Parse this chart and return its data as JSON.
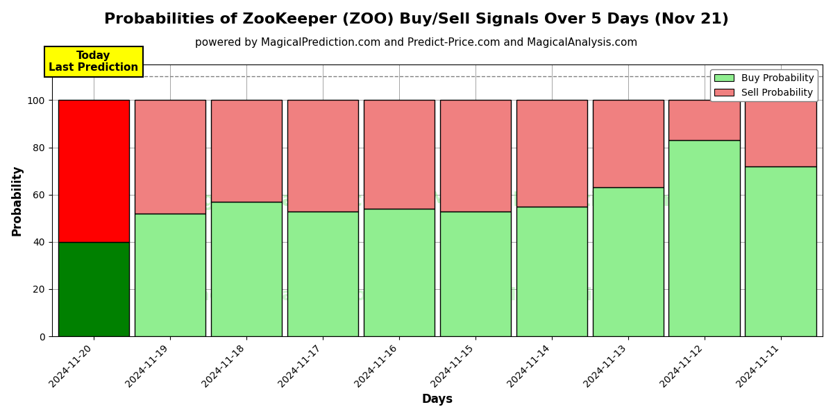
{
  "title": "Probabilities of ZooKeeper (ZOO) Buy/Sell Signals Over 5 Days (Nov 21)",
  "subtitle": "powered by MagicalPrediction.com and Predict-Price.com and MagicalAnalysis.com",
  "xlabel": "Days",
  "ylabel": "Probability",
  "dates": [
    "2024-11-20",
    "2024-11-19",
    "2024-11-18",
    "2024-11-17",
    "2024-11-16",
    "2024-11-15",
    "2024-11-14",
    "2024-11-13",
    "2024-11-12",
    "2024-11-11"
  ],
  "buy_values": [
    40,
    52,
    57,
    53,
    54,
    53,
    55,
    63,
    83,
    72
  ],
  "sell_values": [
    60,
    48,
    43,
    47,
    46,
    47,
    45,
    37,
    17,
    28
  ],
  "today_buy_color": "#008000",
  "today_sell_color": "#ff0000",
  "buy_color": "#90EE90",
  "sell_color": "#F08080",
  "today_label_bg": "#ffff00",
  "today_label_text": "Today\nLast Prediction",
  "legend_buy": "Buy Probability",
  "legend_sell": "Sell Probability",
  "ylim": [
    0,
    115
  ],
  "dashed_line_y": 110,
  "title_fontsize": 16,
  "subtitle_fontsize": 11,
  "axis_fontsize": 12,
  "tick_fontsize": 10,
  "bar_width": 0.93
}
